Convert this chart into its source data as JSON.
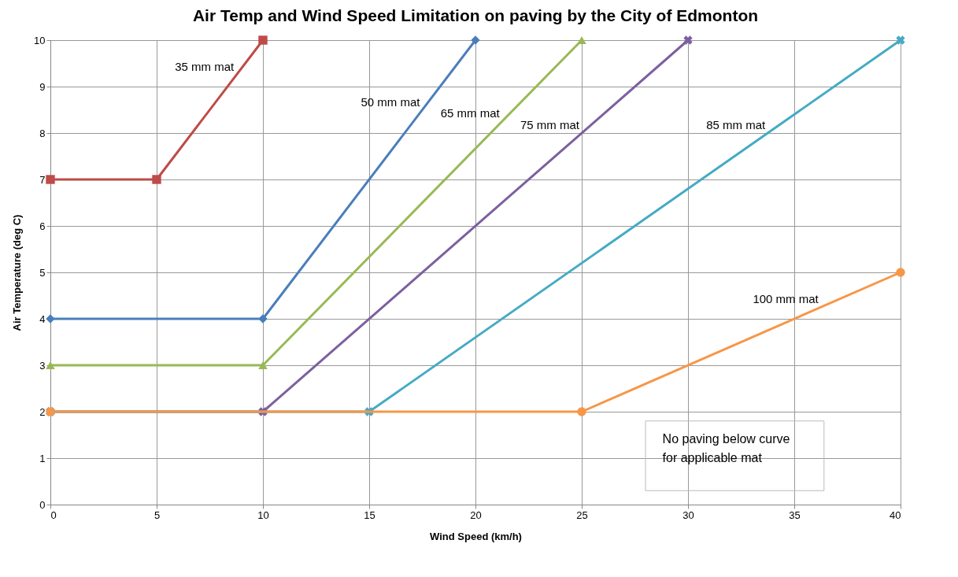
{
  "chart_data": {
    "type": "line",
    "title": "Air Temp and Wind Speed Limitation on paving by the City of Edmonton",
    "xlabel": "Wind Speed (km/h)",
    "ylabel": "Air Temperature (deg C)",
    "xlim": [
      0,
      40
    ],
    "xticks": [
      0,
      5,
      10,
      15,
      20,
      25,
      30,
      35,
      40
    ],
    "ylim": [
      0,
      10
    ],
    "yticks": [
      0,
      1,
      2,
      3,
      4,
      5,
      6,
      7,
      8,
      9,
      10
    ],
    "grid": true,
    "legend": false,
    "series": [
      {
        "name": "35 mm mat",
        "color": "#be4b48",
        "marker": "square",
        "x": [
          0,
          5,
          10
        ],
        "values": [
          7,
          7,
          10
        ]
      },
      {
        "name": "50 mm mat",
        "color": "#4a7ebb",
        "marker": "diamond",
        "x": [
          0,
          10,
          20
        ],
        "values": [
          4,
          4,
          10
        ]
      },
      {
        "name": "65 mm mat",
        "color": "#98b954",
        "marker": "triangle",
        "x": [
          0,
          10,
          25
        ],
        "values": [
          3,
          3,
          10
        ]
      },
      {
        "name": "75 mm mat",
        "color": "#7d60a0",
        "marker": "cross",
        "x": [
          0,
          10,
          30
        ],
        "values": [
          2,
          2,
          10
        ]
      },
      {
        "name": "85 mm mat",
        "color": "#46aac5",
        "marker": "cross",
        "x": [
          0,
          15,
          40
        ],
        "values": [
          2,
          2,
          10
        ]
      },
      {
        "name": "100 mm mat",
        "color": "#f79646",
        "marker": "circle",
        "x": [
          0,
          25,
          40
        ],
        "values": [
          2,
          2,
          5
        ]
      }
    ],
    "annotations": [
      "No paving below curve\nfor applicable mat"
    ]
  }
}
